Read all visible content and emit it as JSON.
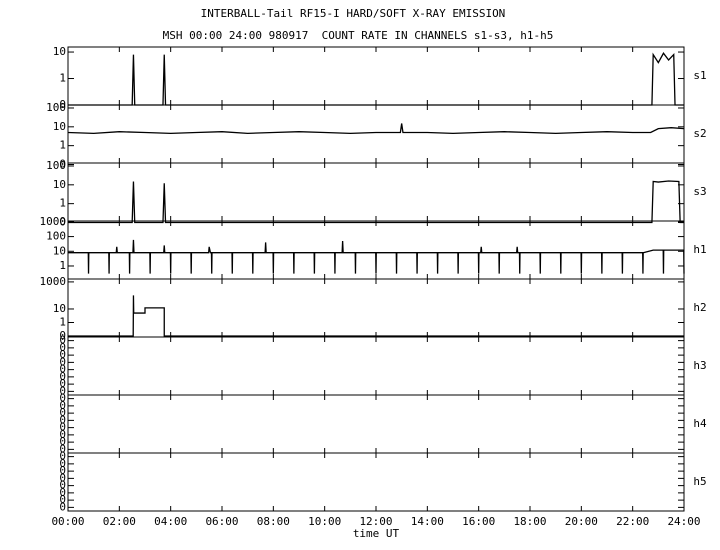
{
  "chart_data": [
    {
      "type": "line",
      "title": "INTERBALL-Tail RF15-I HARD/SOFT X-RAY EMISSION",
      "subtitle": "MSH 00:00 24:00 980917  COUNT RATE IN CHANNELS s1-s3, h1-h5",
      "name": "s1",
      "log": true,
      "xlim": [
        0,
        24
      ],
      "ylim": [
        0.1,
        15.5
      ],
      "yticks": [
        {
          "value": 0.1,
          "label": "0"
        },
        1,
        10
      ],
      "x": [
        0,
        2.5,
        2.55,
        2.6,
        3.7,
        3.75,
        3.8,
        22.75,
        22.8,
        23,
        23.2,
        23.4,
        23.6,
        23.65,
        24
      ],
      "series": [
        {
          "color": "#000000",
          "values": [
            0.1,
            0.1,
            8,
            0.1,
            0.1,
            8,
            0.1,
            0.1,
            8,
            4,
            9,
            5,
            8,
            0.1,
            0.1
          ]
        }
      ]
    },
    {
      "type": "line",
      "name": "s2",
      "log": true,
      "xlim": [
        0,
        24
      ],
      "ylim": [
        0.12,
        144
      ],
      "yticks": [
        {
          "value": 0.1,
          "label": "0"
        },
        1,
        10,
        100
      ],
      "x": [
        0,
        1,
        2,
        3,
        4,
        5,
        6,
        7,
        8,
        9,
        10,
        11,
        12,
        12.95,
        13,
        13.05,
        14,
        15,
        16,
        17,
        18,
        19,
        20,
        21,
        22,
        22.7,
        23,
        23.5,
        24
      ],
      "series": [
        {
          "color": "#000000",
          "values": [
            5,
            4.5,
            5.5,
            5,
            4.5,
            5,
            5.5,
            4.5,
            5,
            5.5,
            5,
            4.5,
            5,
            5,
            15,
            5,
            5,
            4.5,
            5,
            5.5,
            5,
            4.5,
            5,
            5.5,
            5,
            5,
            8,
            9,
            8
          ]
        }
      ]
    },
    {
      "type": "line",
      "name": "s3",
      "log": true,
      "xlim": [
        0,
        24
      ],
      "ylim": [
        0.12,
        144
      ],
      "yticks": [
        {
          "value": 0.1,
          "label": "0"
        },
        1,
        10,
        100
      ],
      "x": [
        0,
        2.5,
        2.55,
        2.6,
        3.7,
        3.75,
        3.8,
        22.75,
        22.8,
        23,
        23.4,
        23.8,
        23.85,
        24
      ],
      "series": [
        {
          "color": "#000000",
          "values": [
            0.1,
            0.1,
            15,
            0.1,
            0.1,
            12,
            0.1,
            0.1,
            15,
            14,
            16,
            15,
            0.1,
            0.1
          ]
        }
      ]
    },
    {
      "type": "line",
      "name": "h1",
      "log": true,
      "xlim": [
        0,
        24
      ],
      "ylim": [
        0.13,
        1150
      ],
      "yticks": [
        1,
        10,
        100,
        1000
      ],
      "x": [
        0,
        0.79,
        0.8,
        0.81,
        1.59,
        1.6,
        1.61,
        1.88,
        1.9,
        1.92,
        2.39,
        2.4,
        2.41,
        2.53,
        2.55,
        2.57,
        3.19,
        3.2,
        3.21,
        3.73,
        3.75,
        3.77,
        3.99,
        4,
        4.01,
        4.79,
        4.8,
        4.81,
        5.48,
        5.5,
        5.55,
        5.59,
        5.6,
        5.61,
        6.39,
        6.4,
        6.41,
        7.19,
        7.2,
        7.21,
        7.68,
        7.7,
        7.72,
        7.99,
        8,
        8.01,
        8.79,
        8.8,
        8.81,
        9.59,
        9.6,
        9.61,
        10.39,
        10.4,
        10.41,
        10.68,
        10.7,
        10.72,
        11.19,
        11.2,
        11.21,
        11.99,
        12,
        12.01,
        12.79,
        12.8,
        12.81,
        13.59,
        13.6,
        13.61,
        14.39,
        14.4,
        14.41,
        15.19,
        15.2,
        15.21,
        15.99,
        16,
        16.01,
        16.08,
        16.1,
        16.12,
        16.79,
        16.8,
        16.81,
        17.48,
        17.5,
        17.52,
        17.59,
        17.6,
        17.61,
        18.39,
        18.4,
        18.41,
        19.19,
        19.2,
        19.21,
        19.99,
        20,
        20.01,
        20.79,
        20.8,
        20.81,
        21.59,
        21.6,
        21.61,
        22.39,
        22.4,
        22.41,
        22.8,
        23.19,
        23.2,
        23.21,
        23.99,
        24
      ],
      "series": [
        {
          "color": "#000000",
          "values": [
            8,
            8,
            0.3,
            8,
            8,
            0.3,
            8,
            8,
            20,
            8,
            8,
            0.3,
            8,
            8,
            60,
            8,
            8,
            0.3,
            8,
            8,
            25,
            8,
            8,
            0.3,
            8,
            8,
            0.3,
            8,
            8,
            20,
            8,
            8,
            0.3,
            8,
            8,
            0.3,
            8,
            8,
            0.3,
            8,
            8,
            40,
            8,
            8,
            0.3,
            8,
            8,
            0.3,
            8,
            8,
            0.3,
            8,
            8,
            0.3,
            8,
            8,
            50,
            8,
            8,
            0.3,
            8,
            8,
            0.3,
            8,
            8,
            0.3,
            8,
            8,
            0.3,
            8,
            8,
            0.3,
            8,
            8,
            0.3,
            8,
            8,
            0.3,
            8,
            8,
            20,
            8,
            8,
            0.3,
            8,
            8,
            20,
            8,
            8,
            0.3,
            8,
            8,
            0.3,
            8,
            8,
            0.3,
            8,
            8,
            0.3,
            8,
            8,
            0.3,
            8,
            8,
            0.3,
            8,
            8,
            0.3,
            8,
            12,
            12,
            0.3,
            12,
            12,
            0.3
          ]
        }
      ]
    },
    {
      "type": "line",
      "name": "h2",
      "log": true,
      "xlim": [
        0,
        24
      ],
      "ylim": [
        0.085,
        1640
      ],
      "yticks": [
        {
          "value": 0.1,
          "label": "0"
        },
        1,
        10,
        1000
      ],
      "x": [
        0,
        2.54,
        2.55,
        2.56,
        3.0,
        3.0,
        3.75,
        3.75,
        24
      ],
      "series": [
        {
          "color": "#000000",
          "values": [
            0.1,
            0.1,
            100,
            5,
            5,
            12,
            12,
            0.1,
            0.1
          ]
        }
      ]
    },
    {
      "type": "line",
      "name": "h3",
      "log": false,
      "xlim": [
        0,
        24
      ],
      "ylim": [
        0,
        8
      ],
      "yticks": [
        {
          "value": 0.5,
          "label": "0"
        },
        {
          "value": 1.5,
          "label": "0"
        },
        {
          "value": 2.5,
          "label": "0"
        },
        {
          "value": 3.5,
          "label": "0"
        },
        {
          "value": 4.5,
          "label": "0"
        },
        {
          "value": 5.5,
          "label": "0"
        },
        {
          "value": 6.5,
          "label": "0"
        },
        {
          "value": 7.5,
          "label": "0"
        }
      ]
    },
    {
      "type": "line",
      "name": "h4",
      "log": false,
      "xlim": [
        0,
        24
      ],
      "ylim": [
        0,
        8
      ],
      "yticks": [
        {
          "value": 0.5,
          "label": "0"
        },
        {
          "value": 1.5,
          "label": "0"
        },
        {
          "value": 2.5,
          "label": "0"
        },
        {
          "value": 3.5,
          "label": "0"
        },
        {
          "value": 4.5,
          "label": "0"
        },
        {
          "value": 5.5,
          "label": "0"
        },
        {
          "value": 6.5,
          "label": "0"
        },
        {
          "value": 7.5,
          "label": "0"
        }
      ]
    },
    {
      "type": "line",
      "name": "h5",
      "log": false,
      "xlim": [
        0,
        24
      ],
      "ylim": [
        0,
        8
      ],
      "yticks": [
        {
          "value": 0.5,
          "label": "0"
        },
        {
          "value": 1.5,
          "label": "0"
        },
        {
          "value": 2.5,
          "label": "0"
        },
        {
          "value": 3.5,
          "label": "0"
        },
        {
          "value": 4.5,
          "label": "0"
        },
        {
          "value": 5.5,
          "label": "0"
        },
        {
          "value": 6.5,
          "label": "0"
        },
        {
          "value": 7.5,
          "label": "0"
        }
      ],
      "xlabel": "time UT",
      "xticks": [
        {
          "value": 0,
          "label": "00:00"
        },
        {
          "value": 2,
          "label": "02:00"
        },
        {
          "value": 4,
          "label": "04:00"
        },
        {
          "value": 6,
          "label": "06:00"
        },
        {
          "value": 8,
          "label": "08:00"
        },
        {
          "value": 10,
          "label": "10:00"
        },
        {
          "value": 12,
          "label": "12:00"
        },
        {
          "value": 14,
          "label": "14:00"
        },
        {
          "value": 16,
          "label": "16:00"
        },
        {
          "value": 18,
          "label": "18:00"
        },
        {
          "value": 20,
          "label": "20:00"
        },
        {
          "value": 22,
          "label": "22:00"
        },
        {
          "value": 24,
          "label": "24:00"
        }
      ]
    }
  ]
}
